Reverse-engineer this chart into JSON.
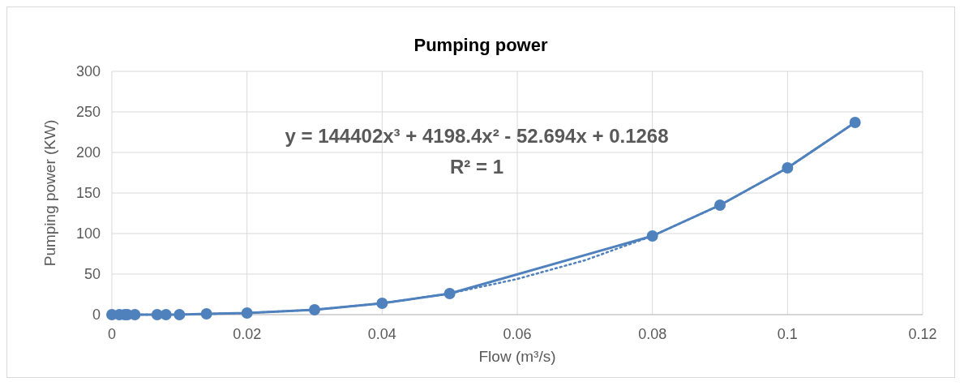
{
  "chart_data": {
    "type": "line",
    "title": "Pumping power",
    "xlabel": "Flow (m³/s)",
    "ylabel": "Pumping power (KW)",
    "x": [
      0,
      0.0011,
      0.0019,
      0.0023,
      0.0034,
      0.0067,
      0.008,
      0.01,
      0.014,
      0.02,
      0.03,
      0.04,
      0.05,
      0.08,
      0.09,
      0.1,
      0.11
    ],
    "series": [
      {
        "color": "#4f81bd",
        "values": [
          0,
          0,
          0,
          0,
          0,
          0,
          0,
          0,
          1,
          2,
          6,
          14,
          26,
          97,
          135,
          181,
          237
        ],
        "marker": "circle",
        "line_style": "solid"
      },
      {
        "type": "line",
        "color": "#4f81bd",
        "x": [
          0,
          0.01,
          0.02,
          0.03,
          0.04,
          0.05,
          0.06,
          0.07,
          0.08,
          0.09,
          0.1,
          0.11
        ],
        "values": [
          0,
          0,
          2,
          6,
          14,
          26,
          44,
          67,
          97,
          135,
          181,
          237
        ],
        "marker": "none",
        "line_style": "dotted"
      }
    ],
    "annotations": [
      "y = 144402x³ + 4198.4x² - 52.694x + 0.1268",
      "R² = 1"
    ],
    "xlim": [
      0,
      0.12
    ],
    "xticks": [
      0,
      0.02,
      0.04,
      0.06,
      0.08,
      0.1,
      0.12
    ],
    "ylim": [
      0,
      300
    ],
    "yticks": [
      0,
      50,
      100,
      150,
      200,
      250,
      300
    ],
    "grid": true
  }
}
